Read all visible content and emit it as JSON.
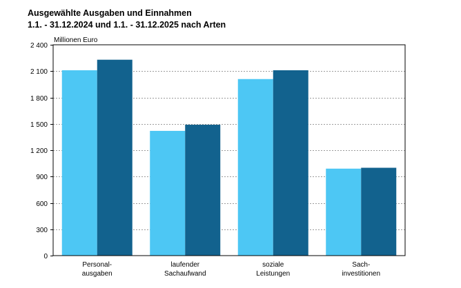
{
  "header": {
    "title_line1": "Ausgewählte Ausgaben und Einnahmen",
    "title_line2": "1.1. - 31.12.2024 und 1.1. - 31.12.2025 nach Arten"
  },
  "chart_data": {
    "type": "bar",
    "unit_label": "Millionen Euro",
    "categories": [
      [
        "Personal-",
        "ausgaben"
      ],
      [
        "laufender",
        "Sachaufwand"
      ],
      [
        "soziale",
        "Leistungen"
      ],
      [
        "Sach-",
        "investitionen"
      ]
    ],
    "series": [
      {
        "color": "#4dc7f4",
        "values": [
          2110,
          1420,
          2010,
          990
        ]
      },
      {
        "color": "#12628e",
        "values": [
          2230,
          1490,
          2110,
          1000
        ]
      }
    ],
    "ylim": [
      0,
      2400
    ],
    "yticks": [
      0,
      300,
      600,
      900,
      1200,
      1500,
      1800,
      2100,
      2400
    ],
    "ytick_labels": [
      "0",
      "300",
      "600",
      "900",
      "1 200",
      "1 500",
      "1 800",
      "2 100",
      "2 400"
    ],
    "grid": true,
    "legend": "none"
  }
}
